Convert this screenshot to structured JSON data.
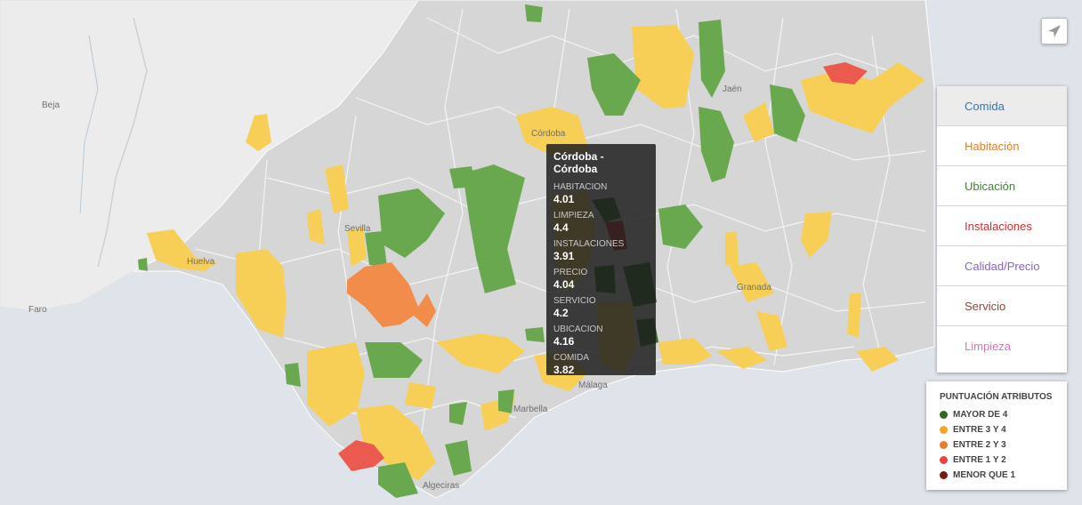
{
  "map": {
    "places": [
      "Beja",
      "Faro",
      "Córdoba",
      "Sevilla",
      "Huelva",
      "Jaén",
      "Granada",
      "Málaga",
      "Marbella",
      "Algeciras"
    ]
  },
  "tooltip": {
    "title": "Córdoba - Córdoba",
    "rows": [
      {
        "label": "HABITACION",
        "value": "4.01"
      },
      {
        "label": "LIMPIEZA",
        "value": "4.4"
      },
      {
        "label": "INSTALACIONES",
        "value": "3.91"
      },
      {
        "label": "PRECIO",
        "value": "4.04"
      },
      {
        "label": "SERVICIO",
        "value": "4.2"
      },
      {
        "label": "UBICACION",
        "value": "4.16"
      },
      {
        "label": "COMIDA",
        "value": "3.82"
      }
    ]
  },
  "locate_button": {
    "icon": "navigation-arrow-icon"
  },
  "menu": {
    "items": [
      {
        "label": "Comida",
        "color": "#2b78b8"
      },
      {
        "label": "Habitación",
        "color": "#e87e1c"
      },
      {
        "label": "Ubicación",
        "color": "#3a8a2a"
      },
      {
        "label": "Instalaciones",
        "color": "#d12f2f"
      },
      {
        "label": "Calidad/Precio",
        "color": "#8a63c2"
      },
      {
        "label": "Servicio",
        "color": "#8c4a3a"
      },
      {
        "label": "Limpieza",
        "color": "#e071b8"
      }
    ]
  },
  "legend": {
    "title": "PUNTUACIÓN ATRIBUTOS",
    "items": [
      {
        "label": "MAYOR DE 4",
        "color": "#2e6b1f"
      },
      {
        "label": "ENTRE 3 Y 4",
        "color": "#f5a623"
      },
      {
        "label": "ENTRE 2 Y 3",
        "color": "#f07a2c"
      },
      {
        "label": "ENTRE 1 Y 2",
        "color": "#e6453a"
      },
      {
        "label": "MENOR QUE 1",
        "color": "#7a1a12"
      }
    ]
  }
}
